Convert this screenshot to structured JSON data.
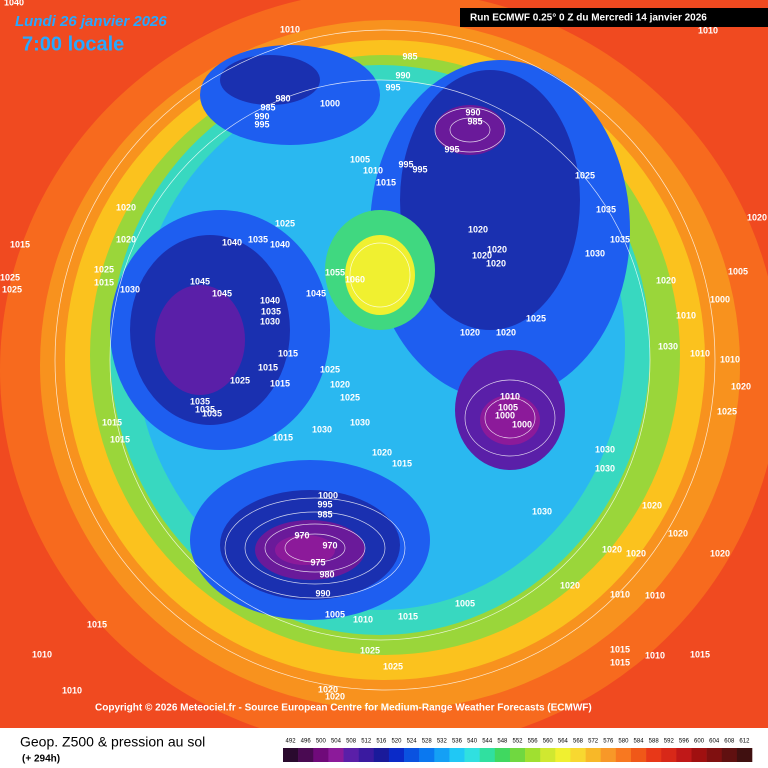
{
  "header": {
    "date": "Lundi 26 janvier 2026",
    "time": "7:00 locale",
    "run": "Run ECMWF 0.25° 0 Z du Mercredi 14 janvier 2026"
  },
  "copyright": "Copyright © 2026 Meteociel.fr - Source European Centre for Medium-Range Weather Forecasts (ECMWF)",
  "footer": {
    "title": "Geop. Z500 & pression au sol",
    "lead": "(+ 294h)"
  },
  "legend": {
    "labels": [
      "492",
      "496",
      "500",
      "504",
      "508",
      "512",
      "516",
      "520",
      "524",
      "528",
      "532",
      "536",
      "540",
      "544",
      "548",
      "552",
      "556",
      "560",
      "564",
      "568",
      "572",
      "576",
      "580",
      "584",
      "588",
      "592",
      "596",
      "600",
      "604",
      "608",
      "612"
    ],
    "colors": [
      "#2a0a2e",
      "#4a0a52",
      "#700a7a",
      "#8c1a9a",
      "#5a1fa8",
      "#3a1aa0",
      "#1a1a9a",
      "#0a2ac8",
      "#0a52e0",
      "#0a78f0",
      "#14a0f5",
      "#20c8f5",
      "#30e0e0",
      "#30e0a0",
      "#40d860",
      "#70d840",
      "#a0e030",
      "#d0e830",
      "#f0f030",
      "#f8d830",
      "#f8b828",
      "#f89828",
      "#f87820",
      "#f05818",
      "#e83818",
      "#d82818",
      "#c01818",
      "#a01010",
      "#801010",
      "#601010",
      "#401010"
    ]
  },
  "isobar_labels": [
    "1010",
    "985",
    "990",
    "995",
    "980",
    "985",
    "990",
    "995",
    "1000",
    "990",
    "985",
    "995",
    "1005",
    "1010",
    "1015",
    "995",
    "995",
    "1020",
    "1020",
    "1015",
    "1025",
    "1025",
    "1025",
    "1015",
    "1030",
    "1025",
    "1040",
    "1035",
    "1040",
    "1045",
    "1045",
    "1040",
    "1035",
    "1030",
    "1055",
    "1060",
    "1045",
    "1025",
    "1015",
    "1015",
    "1015",
    "1025",
    "1020",
    "1025",
    "1035",
    "1035",
    "1035",
    "1015",
    "1015",
    "1015",
    "1030",
    "1030",
    "1020",
    "1015",
    "1020",
    "1020",
    "1020",
    "1020",
    "1020",
    "1020",
    "1025",
    "1010",
    "1005",
    "1000",
    "1000",
    "1025",
    "1035",
    "1035",
    "1030",
    "1030",
    "1030",
    "1030",
    "1000",
    "995",
    "985",
    "970",
    "970",
    "975",
    "980",
    "990",
    "1005",
    "1010",
    "1015",
    "1005",
    "1020",
    "1020",
    "1020",
    "1020",
    "1020",
    "1020",
    "1010",
    "1010",
    "1025",
    "1025",
    "1015",
    "1010",
    "1010",
    "1015",
    "1015",
    "1010",
    "1015",
    "1020",
    "1020",
    "1030",
    "1010",
    "1010",
    "1020",
    "1025",
    "1005",
    "1010",
    "1000",
    "1020",
    "1040",
    "1010",
    "1020"
  ]
}
